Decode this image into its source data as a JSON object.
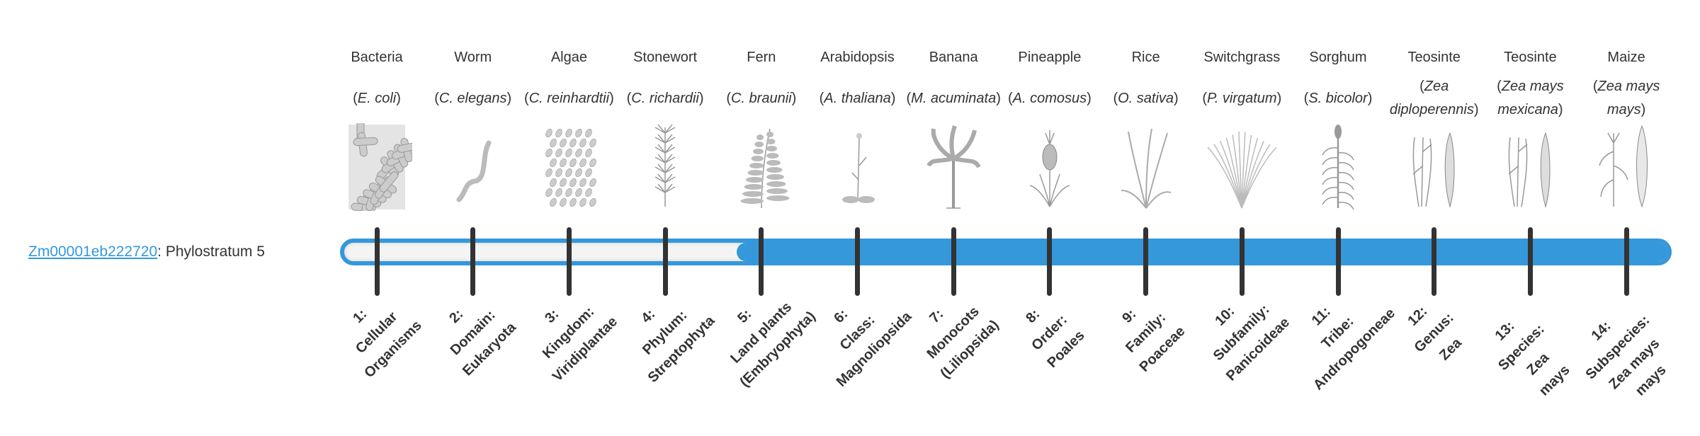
{
  "gene": {
    "id": "Zm00001eb222720",
    "suffix": ": Phylostratum 5",
    "link_color": "#3498db"
  },
  "progress": {
    "phylostratum": 5,
    "total": 14,
    "fill_color": "#3498db"
  },
  "organisms": [
    {
      "common": "Bacteria",
      "species": "E. coli",
      "icon": "bacteria-icon",
      "stratum": [
        "1:",
        "Cellular",
        "Organisms"
      ]
    },
    {
      "common": "Worm",
      "species": "C. elegans",
      "icon": "worm-icon",
      "stratum": [
        "2:",
        "Domain:",
        "Eukaryota"
      ]
    },
    {
      "common": "Algae",
      "species": "C. reinhardtii",
      "icon": "algae-icon",
      "stratum": [
        "3:",
        "Kingdom:",
        "Viridiplantae"
      ]
    },
    {
      "common": "Stonewort",
      "species": "C. richardii",
      "icon": "stonewort-icon",
      "stratum": [
        "4:",
        "Phylum:",
        "Streptophyta"
      ]
    },
    {
      "common": "Fern",
      "species": "C. braunii",
      "icon": "fern-icon",
      "stratum": [
        "5:",
        "Land plants",
        "(Embryophyta)"
      ]
    },
    {
      "common": "Arabidopsis",
      "species": "A. thaliana",
      "icon": "arabidopsis-icon",
      "stratum": [
        "6:",
        "Class:",
        "Magnoliopsida"
      ]
    },
    {
      "common": "Banana",
      "species": "M. acuminata",
      "icon": "banana-icon",
      "stratum": [
        "7:",
        "Monocots",
        "(Liliopsida)"
      ]
    },
    {
      "common": "Pineapple",
      "species": "A. comosus",
      "icon": "pineapple-icon",
      "stratum": [
        "8:",
        "Order:",
        "Poales"
      ]
    },
    {
      "common": "Rice",
      "species": "O. sativa",
      "icon": "rice-icon",
      "stratum": [
        "9:",
        "Family:",
        "Poaceae"
      ]
    },
    {
      "common": "Switchgrass",
      "species": "P. virgatum",
      "icon": "switchgrass-icon",
      "stratum": [
        "10:",
        "Subfamily:",
        "Panicoideae"
      ]
    },
    {
      "common": "Sorghum",
      "species": "S. bicolor",
      "icon": "sorghum-icon",
      "stratum": [
        "11:",
        "Tribe:",
        "Andropogoneae"
      ]
    },
    {
      "common": "Teosinte",
      "species": "Zea diploperennis",
      "icon": "teosinte-icon",
      "stratum": [
        "12:",
        "Genus:",
        "Zea"
      ]
    },
    {
      "common": "Teosinte",
      "species": "Zea mays mexicana",
      "icon": "teosinte-icon",
      "stratum": [
        "13:",
        "Species:",
        "Zea",
        "mays"
      ]
    },
    {
      "common": "Maize",
      "species": "Zea mays mays",
      "icon": "maize-icon",
      "stratum": [
        "14:",
        "Subspecies:",
        "Zea mays",
        "mays"
      ]
    }
  ]
}
